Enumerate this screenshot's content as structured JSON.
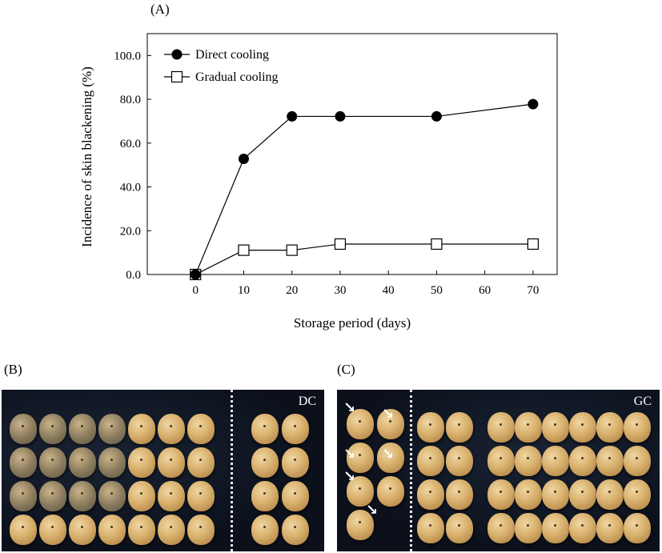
{
  "panels": {
    "a": "(A)",
    "b": "(B)",
    "c": "(C)"
  },
  "photos": {
    "b_tag": "DC",
    "c_tag": "GC"
  },
  "chart_data": {
    "type": "line",
    "xlabel": "Storage period (days)",
    "ylabel": "Incidence of  skin blackening (%)",
    "xlim": [
      -10,
      75
    ],
    "xticks": [
      "0",
      "10",
      "20",
      "30",
      "40",
      "50",
      "60",
      "70"
    ],
    "ylim": [
      0,
      110
    ],
    "yticks": [
      "0.0",
      "20.0",
      "40.0",
      "60.0",
      "80.0",
      "100.0"
    ],
    "grid": false,
    "legend_position": "top-left",
    "series": [
      {
        "name": "Direct cooling",
        "marker": "filled-circle",
        "color": "#000000",
        "x": [
          0,
          10,
          20,
          30,
          50,
          70
        ],
        "values": [
          0.0,
          52.8,
          72.2,
          72.2,
          72.2,
          77.8
        ]
      },
      {
        "name": "Gradual cooling",
        "marker": "open-square",
        "color": "#000000",
        "x": [
          0,
          10,
          20,
          30,
          50,
          70
        ],
        "values": [
          0.0,
          11.1,
          11.1,
          13.9,
          13.9,
          13.9
        ]
      }
    ]
  }
}
